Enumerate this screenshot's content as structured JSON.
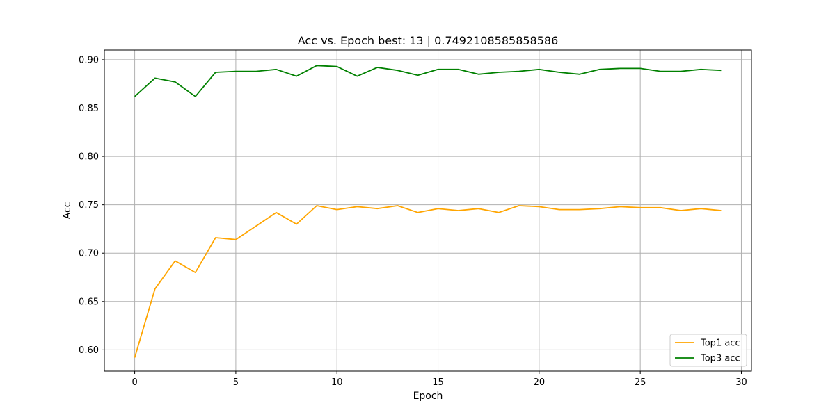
{
  "chart_data": {
    "type": "line",
    "title": "Acc vs. Epoch best: 13 | 0.7492108585858586",
    "xlabel": "Epoch",
    "ylabel": "Acc",
    "xlim": [
      -1.5,
      30.5
    ],
    "ylim": [
      0.578,
      0.91
    ],
    "xticks": [
      0,
      5,
      10,
      15,
      20,
      25,
      30
    ],
    "xtick_labels": [
      "0",
      "5",
      "10",
      "15",
      "20",
      "25",
      "30"
    ],
    "yticks": [
      0.6,
      0.65,
      0.7,
      0.75,
      0.8,
      0.85,
      0.9
    ],
    "ytick_labels": [
      "0.60",
      "0.65",
      "0.70",
      "0.75",
      "0.80",
      "0.85",
      "0.90"
    ],
    "grid": true,
    "legend_position": "lower-right",
    "x": [
      0,
      1,
      2,
      3,
      4,
      5,
      6,
      7,
      8,
      9,
      10,
      11,
      12,
      13,
      14,
      15,
      16,
      17,
      18,
      19,
      20,
      21,
      22,
      23,
      24,
      25,
      26,
      27,
      28,
      29
    ],
    "series": [
      {
        "name": "Top1 acc",
        "color": "#ffa500",
        "values": [
          0.592,
          0.663,
          0.692,
          0.68,
          0.716,
          0.714,
          0.728,
          0.742,
          0.73,
          0.749,
          0.745,
          0.748,
          0.746,
          0.749,
          0.742,
          0.746,
          0.744,
          0.746,
          0.742,
          0.749,
          0.748,
          0.745,
          0.745,
          0.746,
          0.748,
          0.747,
          0.747,
          0.744,
          0.746,
          0.744
        ]
      },
      {
        "name": "Top3 acc",
        "color": "#008000",
        "values": [
          0.862,
          0.881,
          0.877,
          0.862,
          0.887,
          0.888,
          0.888,
          0.89,
          0.883,
          0.894,
          0.893,
          0.883,
          0.892,
          0.889,
          0.884,
          0.89,
          0.89,
          0.885,
          0.887,
          0.888,
          0.89,
          0.887,
          0.885,
          0.89,
          0.891,
          0.891,
          0.888,
          0.888,
          0.89,
          0.889
        ]
      }
    ]
  }
}
